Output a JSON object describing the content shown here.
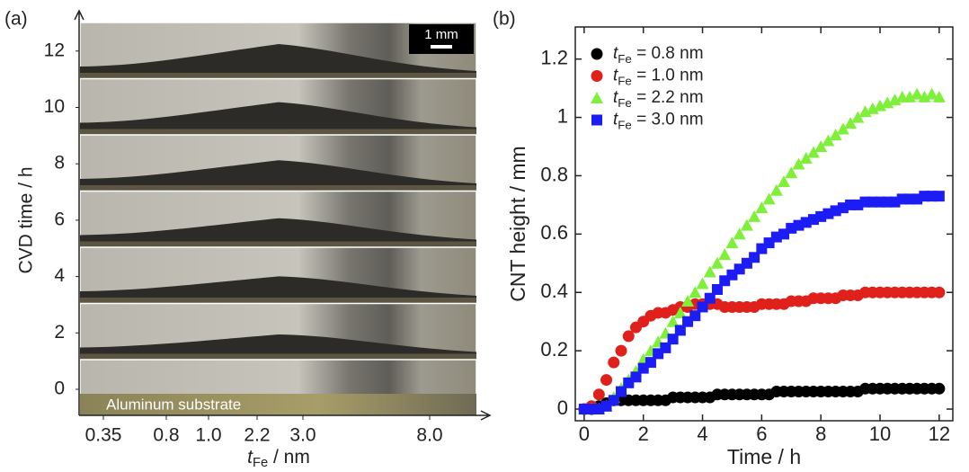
{
  "chart_data": [
    {
      "type": "image",
      "panel_label": "(a)",
      "y_label": "CVD time / h",
      "x_label": "tFe / nm",
      "yticks": [
        0,
        2,
        4,
        6,
        8,
        10,
        12
      ],
      "xticks": [
        0.35,
        0.8,
        {
          "value": 1,
          "label": "1.0"
        },
        2.2,
        {
          "value": 3,
          "label": "3.0"
        },
        {
          "value": 8,
          "label": "8.0"
        }
      ],
      "substrate_label": "Aluminum substrate",
      "scale_bar": "1 mm"
    },
    {
      "type": "scatter",
      "panel_label": "(b)",
      "x_label": "Time / h",
      "y_label": "CNT height / mm",
      "xlim": [
        -0.3,
        12.46
      ],
      "ylim": [
        -0.04,
        1.31
      ],
      "xticks": [
        0,
        2,
        4,
        6,
        8,
        10,
        12
      ],
      "yticks": [
        0,
        0.2,
        0.4,
        0.6,
        0.8,
        1,
        1.2
      ],
      "x": [
        0,
        0.25,
        0.5,
        0.75,
        1,
        1.25,
        1.5,
        1.75,
        2,
        2.25,
        2.5,
        2.75,
        3,
        3.25,
        3.5,
        3.75,
        4,
        4.25,
        4.5,
        4.75,
        5,
        5.25,
        5.5,
        5.75,
        6,
        6.25,
        6.5,
        6.75,
        7,
        7.25,
        7.5,
        7.75,
        8,
        8.25,
        8.5,
        8.75,
        9,
        9.25,
        9.5,
        9.75,
        10,
        10.25,
        10.5,
        10.75,
        11,
        11.25,
        11.5,
        11.75,
        12
      ],
      "series": [
        {
          "name": "tFe = 0.8 nm",
          "color": "#000000",
          "marker": "circle",
          "values": [
            0,
            0,
            0.01,
            0.02,
            0.03,
            0.03,
            0.03,
            0.03,
            0.03,
            0.03,
            0.03,
            0.03,
            0.04,
            0.04,
            0.04,
            0.04,
            0.04,
            0.04,
            0.05,
            0.05,
            0.05,
            0.05,
            0.05,
            0.05,
            0.05,
            0.05,
            0.06,
            0.06,
            0.06,
            0.06,
            0.06,
            0.06,
            0.06,
            0.06,
            0.06,
            0.06,
            0.06,
            0.06,
            0.07,
            0.07,
            0.07,
            0.07,
            0.07,
            0.07,
            0.07,
            0.07,
            0.07,
            0.07,
            0.07
          ]
        },
        {
          "name": "tFe = 1.0 nm",
          "color": "#e0201b",
          "marker": "circle",
          "values": [
            0,
            0.01,
            0.05,
            0.1,
            0.16,
            0.2,
            0.25,
            0.28,
            0.3,
            0.32,
            0.33,
            0.33,
            0.34,
            0.35,
            0.35,
            0.36,
            0.36,
            0.36,
            0.36,
            0.35,
            0.35,
            0.35,
            0.35,
            0.35,
            0.36,
            0.36,
            0.36,
            0.36,
            0.37,
            0.37,
            0.37,
            0.38,
            0.38,
            0.38,
            0.38,
            0.39,
            0.39,
            0.39,
            0.4,
            0.4,
            0.4,
            0.4,
            0.4,
            0.4,
            0.4,
            0.4,
            0.4,
            0.4,
            0.4
          ]
        },
        {
          "name": "tFe = 2.2 nm",
          "color": "#7ff03a",
          "marker": "triangle",
          "values": [
            0,
            0,
            0,
            0.01,
            0.04,
            0.07,
            0.1,
            0.13,
            0.17,
            0.2,
            0.23,
            0.26,
            0.3,
            0.33,
            0.37,
            0.4,
            0.43,
            0.47,
            0.5,
            0.53,
            0.57,
            0.6,
            0.63,
            0.66,
            0.69,
            0.72,
            0.75,
            0.78,
            0.81,
            0.84,
            0.86,
            0.88,
            0.9,
            0.92,
            0.94,
            0.96,
            0.98,
            1.0,
            1.02,
            1.03,
            1.04,
            1.05,
            1.06,
            1.07,
            1.07,
            1.08,
            1.07,
            1.08,
            1.07
          ]
        },
        {
          "name": "tFe = 3.0 nm",
          "color": "#1c1cf5",
          "marker": "square",
          "values": [
            0,
            0,
            0,
            0.01,
            0.03,
            0.06,
            0.09,
            0.11,
            0.14,
            0.16,
            0.19,
            0.21,
            0.24,
            0.27,
            0.3,
            0.32,
            0.35,
            0.38,
            0.41,
            0.44,
            0.46,
            0.48,
            0.5,
            0.52,
            0.55,
            0.57,
            0.59,
            0.6,
            0.62,
            0.63,
            0.64,
            0.65,
            0.66,
            0.67,
            0.68,
            0.69,
            0.7,
            0.7,
            0.71,
            0.71,
            0.71,
            0.71,
            0.71,
            0.72,
            0.72,
            0.72,
            0.73,
            0.73,
            0.73
          ]
        }
      ]
    }
  ]
}
